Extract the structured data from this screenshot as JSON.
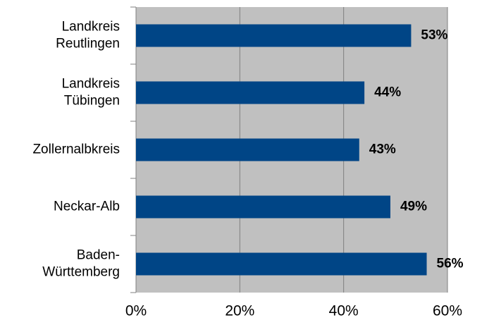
{
  "chart_data": {
    "type": "bar",
    "orientation": "horizontal",
    "categories": [
      "Landkreis\nReutlingen",
      "Landkreis\nTübingen",
      "Zollernalbkreis",
      "Neckar-Alb",
      "Baden-\nWürttemberg"
    ],
    "values": [
      53,
      44,
      43,
      49,
      56
    ],
    "value_labels": [
      "53%",
      "44%",
      "43%",
      "49%",
      "56%"
    ],
    "color": "#004586",
    "xlim": [
      0,
      60
    ],
    "xticks": [
      {
        "value": 0,
        "label": "0%"
      },
      {
        "value": 20,
        "label": "20%"
      },
      {
        "value": 40,
        "label": "40%"
      },
      {
        "value": 60,
        "label": "60%"
      }
    ],
    "grid": true
  }
}
